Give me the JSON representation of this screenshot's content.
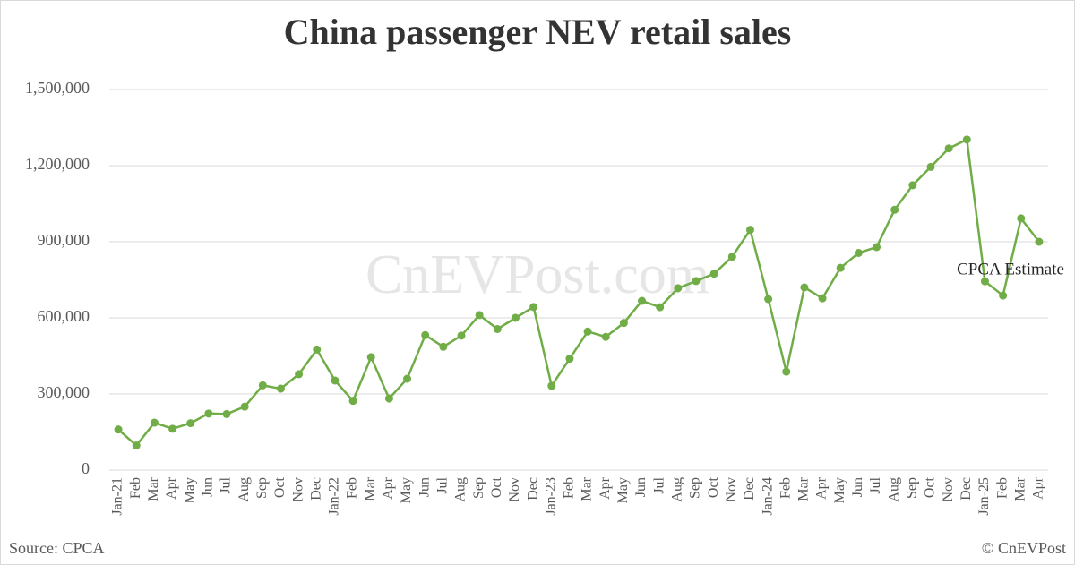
{
  "chart_data": {
    "type": "line",
    "title": "China passenger NEV retail sales",
    "watermark": "CnEVPost.com",
    "annotation": "CPCA Estimate",
    "source": "Source: CPCA",
    "credit": "© CnEVPost",
    "categories": [
      "Jan-21",
      "Feb",
      "Mar",
      "Apr",
      "May",
      "Jun",
      "Jul",
      "Aug",
      "Sep",
      "Oct",
      "Nov",
      "Dec",
      "Jan-22",
      "Feb",
      "Mar",
      "Apr",
      "May",
      "Jun",
      "Jul",
      "Aug",
      "Sep",
      "Oct",
      "Nov",
      "Dec",
      "Jan-23",
      "Feb",
      "Mar",
      "Apr",
      "May",
      "Jun",
      "Jul",
      "Aug",
      "Sep",
      "Oct",
      "Nov",
      "Dec",
      "Jan-24",
      "Feb",
      "Mar",
      "Apr",
      "May",
      "Jun",
      "Jul",
      "Aug",
      "Sep",
      "Oct",
      "Nov",
      "Dec",
      "Jan-25",
      "Feb",
      "Mar",
      "Apr"
    ],
    "series": [
      {
        "color": "#70ad47",
        "values": [
          160000,
          97000,
          187000,
          163000,
          185000,
          223000,
          221000,
          250000,
          334000,
          321000,
          378000,
          475000,
          353000,
          273000,
          445000,
          282000,
          360000,
          532000,
          486000,
          530000,
          611000,
          556000,
          600000,
          643000,
          332000,
          439000,
          546000,
          525000,
          580000,
          667000,
          642000,
          717000,
          745000,
          774000,
          841000,
          947000,
          674000,
          388000,
          720000,
          677000,
          797000,
          856000,
          879000,
          1026000,
          1123000,
          1195000,
          1268000,
          1303000,
          744000,
          688000,
          992000,
          900000
        ]
      }
    ],
    "ylim": [
      0,
      1500000
    ],
    "yticks": [
      0,
      {
        "value": 300000,
        "label": "300,000"
      },
      {
        "value": 600000,
        "label": "600,000"
      },
      {
        "value": 900000,
        "label": "900,000"
      },
      {
        "value": 1200000,
        "label": "1,200,000"
      },
      {
        "value": 1500000,
        "label": "1,500,000"
      }
    ],
    "grid": true
  }
}
